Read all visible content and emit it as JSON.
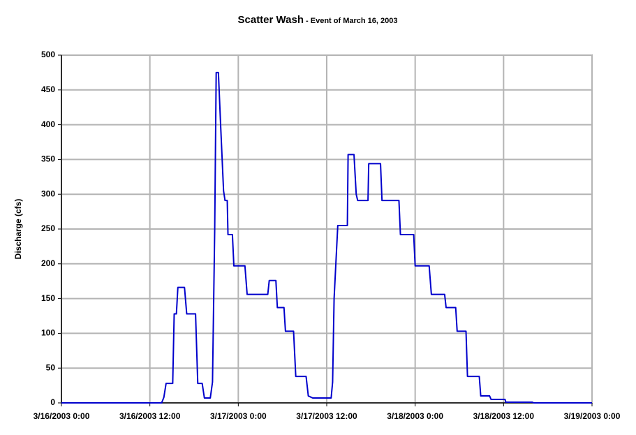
{
  "chart_data": {
    "type": "line",
    "title": "Scatter Wash",
    "subtitle": " - Event of March 16, 2003",
    "y_label": "Discharge (cfs)",
    "xlim": [
      "3/16/2003 0:00",
      "3/19/2003 0:00"
    ],
    "xticks": [
      "3/16/2003 0:00",
      "3/16/2003 12:00",
      "3/17/2003 0:00",
      "3/17/2003 12:00",
      "3/18/2003 0:00",
      "3/18/2003 12:00",
      "3/19/2003 0:00"
    ],
    "ylim": [
      0,
      500
    ],
    "yticks": [
      0,
      50,
      100,
      150,
      200,
      250,
      300,
      350,
      400,
      450,
      500
    ],
    "grid": true,
    "x": [
      "3/16/2003 0:00",
      "3/16/2003 13:36",
      "3/16/2003 13:54",
      "3/16/2003 14:12",
      "3/16/2003 15:06",
      "3/16/2003 15:18",
      "3/16/2003 15:36",
      "3/16/2003 15:48",
      "3/16/2003 16:42",
      "3/16/2003 17:00",
      "3/16/2003 18:12",
      "3/16/2003 18:30",
      "3/16/2003 19:06",
      "3/16/2003 19:24",
      "3/16/2003 20:12",
      "3/16/2003 20:30",
      "3/16/2003 20:48",
      "3/16/2003 21:00",
      "3/16/2003 21:18",
      "3/16/2003 21:36",
      "3/16/2003 22:00",
      "3/16/2003 22:12",
      "3/16/2003 22:30",
      "3/16/2003 22:36",
      "3/16/2003 23:12",
      "3/16/2003 23:24",
      "3/17/2003 0:54",
      "3/17/2003 1:12",
      "3/17/2003 4:00",
      "3/17/2003 4:12",
      "3/17/2003 5:06",
      "3/17/2003 5:18",
      "3/17/2003 6:12",
      "3/17/2003 6:24",
      "3/17/2003 7:30",
      "3/17/2003 7:48",
      "3/17/2003 9:12",
      "3/17/2003 9:30",
      "3/17/2003 10:06",
      "3/17/2003 12:36",
      "3/17/2003 12:48",
      "3/17/2003 13:00",
      "3/17/2003 13:30",
      "3/17/2003 14:48",
      "3/17/2003 14:54",
      "3/17/2003 15:42",
      "3/17/2003 16:00",
      "3/17/2003 16:12",
      "3/17/2003 17:36",
      "3/17/2003 17:42",
      "3/17/2003 19:18",
      "3/17/2003 19:30",
      "3/17/2003 21:48",
      "3/17/2003 22:00",
      "3/17/2003 23:48",
      "3/18/2003 0:00",
      "3/18/2003 1:54",
      "3/18/2003 2:12",
      "3/18/2003 4:00",
      "3/18/2003 4:12",
      "3/18/2003 5:30",
      "3/18/2003 5:42",
      "3/18/2003 6:54",
      "3/18/2003 7:06",
      "3/18/2003 8:42",
      "3/18/2003 8:54",
      "3/18/2003 10:06",
      "3/18/2003 10:18",
      "3/18/2003 12:12",
      "3/18/2003 12:18",
      "3/18/2003 15:54",
      "3/18/2003 16:06",
      "3/19/2003 0:00"
    ],
    "series": [
      {
        "color": "#0000cc",
        "values": [
          0,
          0,
          8,
          28,
          28,
          128,
          128,
          166,
          166,
          128,
          128,
          28,
          28,
          7,
          7,
          30,
          250,
          475,
          475,
          400,
          305,
          291,
          291,
          242,
          242,
          197,
          197,
          156,
          156,
          176,
          176,
          137,
          137,
          103,
          103,
          38,
          38,
          10,
          7,
          7,
          30,
          150,
          255,
          255,
          357,
          357,
          300,
          291,
          291,
          344,
          344,
          291,
          291,
          242,
          242,
          197,
          197,
          156,
          156,
          137,
          137,
          103,
          103,
          38,
          38,
          10,
          10,
          5,
          5,
          1,
          1,
          0,
          0
        ]
      }
    ]
  }
}
